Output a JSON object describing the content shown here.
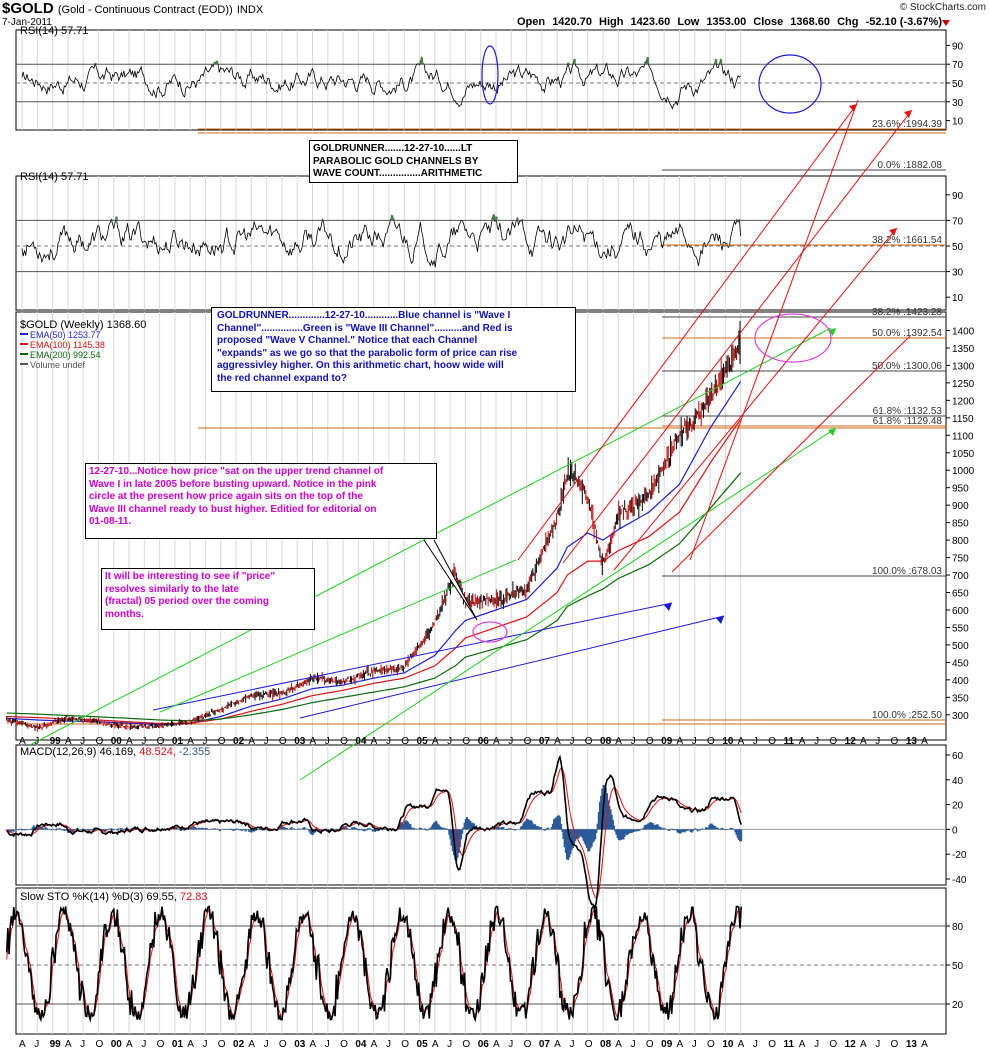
{
  "header": {
    "symbol": "$GOLD",
    "description": "(Gold - Continuous Contract (EOD))",
    "exchange": "INDX",
    "date": "7-Jan-2011",
    "brand": "© StockCharts.com",
    "open_label": "Open",
    "open": "1420.70",
    "high_label": "High",
    "high": "1423.60",
    "low_label": "Low",
    "low": "1353.00",
    "close_label": "Close",
    "close": "1368.60",
    "chg_label": "Chg",
    "chg": "-52.10 (-3.67%)"
  },
  "annotations": {
    "note1_lines": [
      "GOLDRUNNER.......12-27-10......LT",
      "PARABOLIC GOLD CHANNELS BY",
      "WAVE COUNT...............ARITHMETIC"
    ],
    "note2_lines": [
      "GOLDRUNNER.............12-27-10............Blue channel is \"Wave I",
      "Channel\"...............Green is \"Wave III Channel\"..........and Red is",
      "proposed \"Wave V Channel.\"   Notice that each Channel",
      "\"expands\" as we go so that the parabolic form of price can rise",
      "aggressivley higher.  On this arithmetic chart, hoow wide will",
      "the red channel expand to?"
    ],
    "note3_lines": [
      "12-27-10...Notice how price \"sat on the upper trend channel of",
      "Wave I in late 2005 before busting upward.  Notice in the pink",
      "circle at the present how price again sits on the top of the",
      "Wave III channel ready to bust higher. Editied for editorial on",
      "01-08-11."
    ],
    "note4_lines": [
      "It will be interesting to see if \"price\"",
      "resolves similarly to the late",
      "(fractal) 05 period over the coming",
      "months."
    ]
  },
  "fib_labels": [
    {
      "text": "23.6% :1994.39"
    },
    {
      "text": "0.0% :1882.08"
    },
    {
      "text": "38.2% :1661.54"
    },
    {
      "text": "38.2% :1423.28"
    },
    {
      "text": "50.0% :1392.54"
    },
    {
      "text": "50.0% :1300.06"
    },
    {
      "text": "61.8% :1132.53"
    },
    {
      "text": "61.8% :1129.48"
    },
    {
      "text": "100.0% :678.03"
    },
    {
      "text": "100.0% :252.50"
    }
  ],
  "x_axis_labels": [
    "A",
    "J",
    "99",
    "A",
    "J",
    "O",
    "00",
    "A",
    "J",
    "O",
    "01",
    "A",
    "J",
    "O",
    "02",
    "A",
    "J",
    "O",
    "03",
    "A",
    "J",
    "O",
    "04",
    "A",
    "J",
    "O",
    "05",
    "A",
    "J",
    "O",
    "06",
    "A",
    "J",
    "O",
    "07",
    "A",
    "J",
    "O",
    "08",
    "A",
    "J",
    "O",
    "09",
    "A",
    "J",
    "O",
    "10",
    "A",
    "J",
    "O",
    "11",
    "A",
    "J",
    "O",
    "12",
    "A",
    "J",
    "O",
    "13",
    "A"
  ],
  "chart_data": [
    {
      "type": "line",
      "panel": "rsi",
      "title": "RSI(14) 57.71",
      "ylim": [
        0,
        100
      ],
      "y_ticks": [
        90,
        70,
        50,
        30,
        10
      ],
      "reference_lines": [
        70,
        50,
        30
      ],
      "series": [
        {
          "name": "RSI(14)",
          "last": 57.71
        }
      ]
    },
    {
      "type": "line",
      "panel": "rsi",
      "title": "RSI(14) 57.71",
      "ylim": [
        0,
        100
      ],
      "y_ticks": [
        90,
        70,
        50,
        30,
        10
      ],
      "reference_lines": [
        70,
        50,
        30
      ],
      "series": [
        {
          "name": "RSI(14)",
          "last": 57.71
        }
      ]
    },
    {
      "type": "line",
      "panel": "price",
      "title": "$GOLD (Weekly) 1368.60",
      "legend": [
        {
          "name": "$GOLD (Weekly)",
          "value": "1368.60",
          "color": "#000000"
        },
        {
          "name": "EMA(50)",
          "value": "1253.77",
          "color": "#1f1fd8"
        },
        {
          "name": "EMA(100)",
          "value": "1145.38",
          "color": "#e01010"
        },
        {
          "name": "EMA(200)",
          "value": "992.54",
          "color": "#0a6a0a"
        },
        {
          "name": "Volume undef",
          "value": "",
          "color": "#555555"
        }
      ],
      "legend_position": "top-left",
      "ylim": [
        245,
        1430
      ],
      "y_ticks": [
        1400,
        1350,
        1300,
        1250,
        1200,
        1150,
        1100,
        1050,
        1000,
        950,
        900,
        850,
        800,
        750,
        700,
        650,
        600,
        550,
        500,
        450,
        400,
        350,
        300
      ],
      "x": [
        "1999-01",
        "1999-07",
        "2000-01",
        "2000-07",
        "2001-01",
        "2001-07",
        "2002-01",
        "2002-07",
        "2003-01",
        "2003-07",
        "2004-01",
        "2004-07",
        "2005-01",
        "2005-07",
        "2006-01",
        "2006-05",
        "2006-07",
        "2007-01",
        "2007-07",
        "2008-01",
        "2008-03",
        "2008-07",
        "2008-10",
        "2009-01",
        "2009-07",
        "2010-01",
        "2010-07",
        "2011-01"
      ],
      "series": [
        {
          "name": "$GOLD",
          "values": [
            287,
            262,
            290,
            280,
            265,
            268,
            280,
            315,
            355,
            360,
            405,
            395,
            425,
            435,
            560,
            710,
            620,
            630,
            660,
            860,
            1000,
            930,
            720,
            870,
            930,
            1100,
            1200,
            1368.6
          ]
        },
        {
          "name": "EMA(50)",
          "values": [
            290,
            285,
            282,
            280,
            276,
            272,
            276,
            295,
            325,
            345,
            375,
            385,
            405,
            420,
            470,
            540,
            570,
            600,
            630,
            720,
            780,
            820,
            800,
            830,
            880,
            960,
            1120,
            1253.77
          ]
        },
        {
          "name": "EMA(100)",
          "values": [
            295,
            292,
            288,
            285,
            280,
            275,
            276,
            288,
            310,
            330,
            355,
            370,
            390,
            405,
            440,
            490,
            520,
            550,
            580,
            650,
            700,
            740,
            740,
            770,
            810,
            880,
            1020,
            1145.38
          ]
        },
        {
          "name": "EMA(200)",
          "values": [
            305,
            302,
            298,
            294,
            290,
            285,
            283,
            288,
            300,
            315,
            335,
            350,
            365,
            380,
            405,
            440,
            465,
            490,
            515,
            570,
            610,
            640,
            660,
            690,
            730,
            790,
            890,
            992.54
          ]
        }
      ],
      "trend_channels": [
        {
          "name": "Wave I Channel",
          "color": "blue"
        },
        {
          "name": "Wave III Channel",
          "color": "green"
        },
        {
          "name": "Wave V Channel",
          "color": "red"
        }
      ]
    },
    {
      "type": "line",
      "panel": "macd",
      "title": "MACD(12,26,9) 46.169, 48.524, -2.355",
      "ylim": [
        -40,
        60
      ],
      "y_ticks": [
        60,
        40,
        20,
        0,
        -20,
        -40
      ],
      "series": [
        {
          "name": "MACD(12,26,9)",
          "last": 46.169
        },
        {
          "name": "Signal",
          "last": 48.524
        },
        {
          "name": "Histogram",
          "last": -2.355
        }
      ]
    },
    {
      "type": "line",
      "panel": "stochastic",
      "title": "Slow STO %K(14) %D(3) 69.55, 72.83",
      "ylim": [
        0,
        100
      ],
      "y_ticks": [
        80,
        50,
        20
      ],
      "reference_lines": [
        80,
        50,
        20
      ],
      "series": [
        {
          "name": "%K(14)",
          "last": 69.55
        },
        {
          "name": "%D(3)",
          "last": 72.83
        }
      ]
    }
  ],
  "colors": {
    "price": "#000000",
    "ema50": "#1f1fd8",
    "ema100": "#e01010",
    "ema200": "#0a6a0a",
    "fib": "#d2691e",
    "blue_channel": "#1a1ae0",
    "green_channel": "#20d020",
    "red_channel": "#e81010",
    "pink_circle": "#e040e0",
    "grid": "#888888",
    "rsi_fill": "#4d7a4d",
    "macd_hist": "#2a5a9a"
  }
}
